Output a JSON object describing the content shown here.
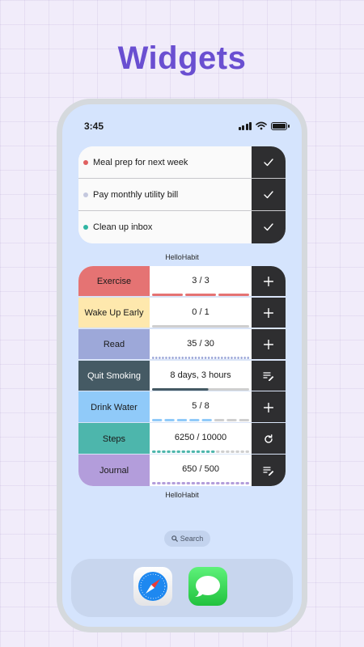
{
  "headline": "Widgets",
  "status_bar": {
    "time": "3:45",
    "icons": [
      "cellular-signal-icon",
      "wifi-icon",
      "battery-icon"
    ]
  },
  "todo_widget": {
    "items": [
      {
        "label": "Meal prep for next week",
        "dot_color": "#e06060",
        "action_icon": "checkmark-icon"
      },
      {
        "label": "Pay monthly utility bill",
        "dot_color": "#c4c8de",
        "action_icon": "checkmark-icon"
      },
      {
        "label": "Clean up inbox",
        "dot_color": "#2fb5a3",
        "action_icon": "checkmark-icon"
      }
    ],
    "caption": "HelloHabit"
  },
  "habit_widget": {
    "habits": [
      {
        "name": "Exercise",
        "progress": "3 / 3",
        "color": "#e57373",
        "done": 3,
        "segments": 3,
        "action_icon": "plus-icon"
      },
      {
        "name": "Wake Up Early",
        "progress": "0 / 1",
        "color": "#fee8ad",
        "done": 0,
        "segments": 1,
        "action_icon": "plus-icon"
      },
      {
        "name": "Read",
        "progress": "35 / 30",
        "color": "#9da8d9",
        "done": 30,
        "segments": 30,
        "action_icon": "plus-icon"
      },
      {
        "name": "Quit Smoking",
        "progress": "8 days, 3 hours",
        "color": "#455a64",
        "text_color": "#ffffff",
        "fraction": 0.58,
        "action_icon": "note-edit-icon"
      },
      {
        "name": "Drink Water",
        "progress": "5 / 8",
        "color": "#90caf9",
        "done": 5,
        "segments": 8,
        "action_icon": "plus-icon"
      },
      {
        "name": "Steps",
        "progress": "6250 / 10000",
        "color": "#4db6ac",
        "done": 13,
        "segments": 20,
        "action_icon": "refresh-icon"
      },
      {
        "name": "Journal",
        "progress": "650 / 500",
        "color": "#b39ddb",
        "done": 20,
        "segments": 20,
        "action_icon": "note-edit-icon"
      }
    ],
    "caption": "HelloHabit"
  },
  "search": {
    "label": "Search"
  },
  "dock": {
    "apps": [
      {
        "name": "Safari",
        "icon": "safari-compass-icon"
      },
      {
        "name": "Messages",
        "icon": "messages-bubble-icon"
      }
    ]
  },
  "colors": {
    "accent": "#6a4fd1",
    "button_dark": "#2e2e30",
    "phone_bg": "#d5e4fd",
    "track_gray": "#cfcfcf"
  }
}
